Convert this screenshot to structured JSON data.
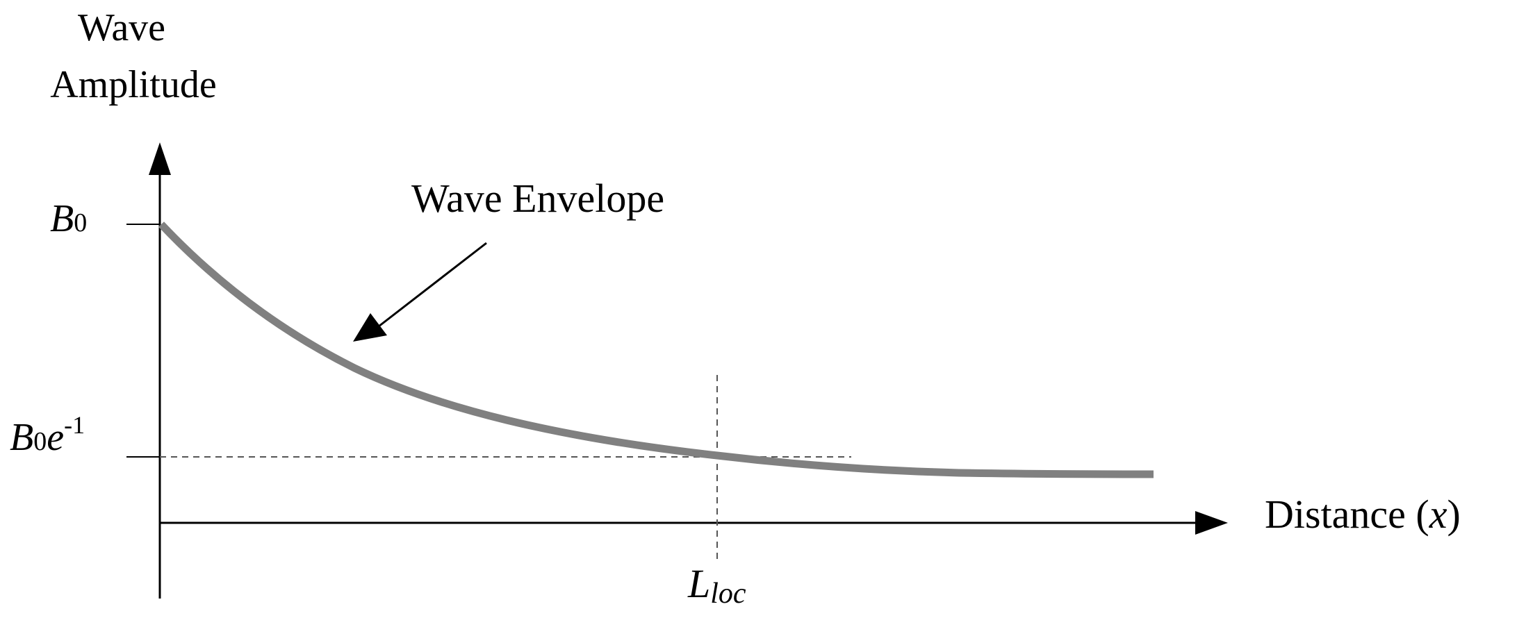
{
  "y_axis_label": {
    "line1": "Wave",
    "line2": "Amplitude"
  },
  "x_axis_label": {
    "text": "Distance (",
    "variable": "x",
    "close": ")"
  },
  "curve_annotation": "Wave Envelope",
  "y_ticks": {
    "top": {
      "base": "B",
      "sub": "0"
    },
    "mid": {
      "base": "B",
      "sub": "0",
      "var": "e",
      "sup": "-1"
    }
  },
  "x_marker": {
    "base": "L",
    "sub": "loc"
  },
  "colors": {
    "curve": "#808080",
    "axes": "#000000",
    "guides": "#555555"
  }
}
